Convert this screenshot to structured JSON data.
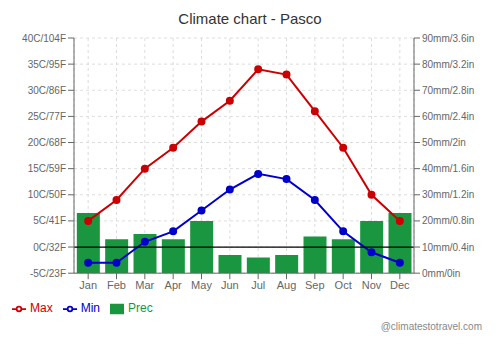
{
  "chart_data": {
    "type": "bar",
    "title": "Climate chart - Pasco",
    "categories": [
      "Jan",
      "Feb",
      "Mar",
      "Apr",
      "May",
      "Jun",
      "Jul",
      "Aug",
      "Sep",
      "Oct",
      "Nov",
      "Dec"
    ],
    "series": [
      {
        "name": "Prec",
        "type": "bar",
        "axis": "y2",
        "color": "#1a9641",
        "values": [
          23,
          13,
          15,
          13,
          20,
          7,
          6,
          7,
          14,
          13,
          20,
          23
        ]
      },
      {
        "name": "Min",
        "type": "line",
        "marker": "circle",
        "color": "#0000cc",
        "values": [
          -3,
          -3,
          1,
          3,
          7,
          11,
          14,
          13,
          9,
          3,
          -1,
          -3
        ]
      },
      {
        "name": "Max",
        "type": "line",
        "marker": "circle",
        "color": "#cc0000",
        "values": [
          5,
          9,
          15,
          19,
          24,
          28,
          34,
          33,
          26,
          19,
          10,
          5
        ]
      }
    ],
    "ylim": [
      -5,
      40
    ],
    "yticks": [
      {
        "value": -5,
        "label": "-5C/23F"
      },
      {
        "value": 0,
        "label": "0C/32F"
      },
      {
        "value": 5,
        "label": "5C/41F"
      },
      {
        "value": 10,
        "label": "10C/50F"
      },
      {
        "value": 15,
        "label": "15C/59F"
      },
      {
        "value": 20,
        "label": "20C/68F"
      },
      {
        "value": 25,
        "label": "25C/77F"
      },
      {
        "value": 30,
        "label": "30C/86F"
      },
      {
        "value": 35,
        "label": "35C/95F"
      },
      {
        "value": 40,
        "label": "40C/104F"
      }
    ],
    "y2lim": [
      0,
      90
    ],
    "y2ticks": [
      {
        "value": 0,
        "label": "0mm/0in"
      },
      {
        "value": 10,
        "label": "10mm/0.4in"
      },
      {
        "value": 20,
        "label": "20mm/0.8in"
      },
      {
        "value": 30,
        "label": "30mm/1.2in"
      },
      {
        "value": 40,
        "label": "40mm/1.6in"
      },
      {
        "value": 50,
        "label": "50mm/2in"
      },
      {
        "value": 60,
        "label": "60mm/2.4in"
      },
      {
        "value": 70,
        "label": "70mm/2.8in"
      },
      {
        "value": 80,
        "label": "80mm/3.2in"
      },
      {
        "value": 90,
        "label": "90mm/3.6in"
      }
    ],
    "hlines": [
      0
    ],
    "grid": true,
    "legend": "bottom",
    "annotations": [
      "@climatestotravel.com"
    ]
  }
}
